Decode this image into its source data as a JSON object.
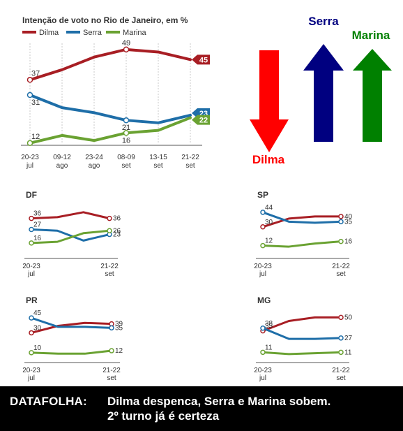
{
  "colors": {
    "dilma": "#a81e24",
    "serra": "#1e6ea8",
    "marina": "#6aa232",
    "arrow_dilma": "#ff0000",
    "arrow_serra": "#000080",
    "arrow_marina": "#008000"
  },
  "arrows": {
    "dilma": "Dilma",
    "serra": "Serra",
    "marina": "Marina"
  },
  "footer": {
    "source": "DATAFOLHA:",
    "line1": "Dilma despenca, Serra e Marina sobem.",
    "line2": "2º turno já é certeza"
  },
  "chart_data": [
    {
      "type": "line",
      "title": "Intenção de voto no Rio de Janeiro, em %",
      "legend_position": "top",
      "categories": [
        [
          "20-23",
          "jul"
        ],
        [
          "09-12",
          "ago"
        ],
        [
          "23-24",
          "ago"
        ],
        [
          "08-09",
          "set"
        ],
        [
          "13-15",
          "set"
        ],
        [
          "21-22",
          "set"
        ]
      ],
      "series": [
        {
          "name": "Dilma",
          "values": [
            37,
            41,
            46,
            49,
            48,
            45
          ],
          "labels": [
            "37",
            "",
            "",
            "49",
            "",
            "45"
          ]
        },
        {
          "name": "Serra",
          "values": [
            31,
            26,
            24,
            21,
            20,
            23
          ],
          "labels": [
            "31",
            "",
            "",
            "21",
            "",
            "23"
          ]
        },
        {
          "name": "Marina",
          "values": [
            12,
            15,
            13,
            16,
            17,
            22
          ],
          "labels": [
            "12",
            "",
            "",
            "16",
            "",
            "22"
          ]
        }
      ],
      "ylim": [
        10,
        52
      ]
    },
    {
      "type": "line",
      "title": "DF",
      "x_labels": [
        [
          "20-23",
          "jul"
        ],
        [
          "21-22",
          "set"
        ]
      ],
      "series": [
        {
          "name": "Dilma",
          "values": [
            36,
            37,
            41,
            36
          ],
          "labels": [
            "36",
            "36"
          ]
        },
        {
          "name": "Serra",
          "values": [
            27,
            26,
            18,
            23
          ],
          "labels": [
            "27",
            "23"
          ]
        },
        {
          "name": "Marina",
          "values": [
            16,
            17,
            24,
            26
          ],
          "labels": [
            "16",
            "26"
          ]
        }
      ],
      "ylim": [
        8,
        46
      ]
    },
    {
      "type": "line",
      "title": "SP",
      "x_labels": [
        [
          "20-23",
          "jul"
        ],
        [
          "21-22",
          "set"
        ]
      ],
      "series": [
        {
          "name": "Dilma",
          "values": [
            30,
            38,
            40,
            40
          ],
          "labels": [
            "30",
            "40"
          ]
        },
        {
          "name": "Serra",
          "values": [
            44,
            35,
            34,
            35
          ],
          "labels": [
            "44",
            "35"
          ]
        },
        {
          "name": "Marina",
          "values": [
            12,
            11,
            14,
            16
          ],
          "labels": [
            "12",
            "16"
          ]
        }
      ],
      "ylim": [
        5,
        50
      ]
    },
    {
      "type": "line",
      "title": "PR",
      "x_labels": [
        [
          "20-23",
          "jul"
        ],
        [
          "21-22",
          "set"
        ]
      ],
      "series": [
        {
          "name": "Dilma",
          "values": [
            30,
            37,
            40,
            39
          ],
          "labels": [
            "30",
            "39"
          ]
        },
        {
          "name": "Serra",
          "values": [
            45,
            36,
            36,
            35
          ],
          "labels": [
            "45",
            "35"
          ]
        },
        {
          "name": "Marina",
          "values": [
            10,
            9,
            9,
            12
          ],
          "labels": [
            "10",
            "12"
          ]
        }
      ],
      "ylim": [
        5,
        50
      ]
    },
    {
      "type": "line",
      "title": "MG",
      "x_labels": [
        [
          "20-23",
          "jul"
        ],
        [
          "21-22",
          "set"
        ]
      ],
      "series": [
        {
          "name": "Dilma",
          "values": [
            35,
            46,
            50,
            50
          ],
          "labels": [
            "35",
            "50"
          ]
        },
        {
          "name": "Serra",
          "values": [
            38,
            26,
            26,
            27
          ],
          "labels": [
            "38",
            "27"
          ]
        },
        {
          "name": "Marina",
          "values": [
            11,
            9,
            10,
            11
          ],
          "labels": [
            "11",
            "11"
          ]
        }
      ],
      "ylim": [
        5,
        55
      ]
    }
  ]
}
